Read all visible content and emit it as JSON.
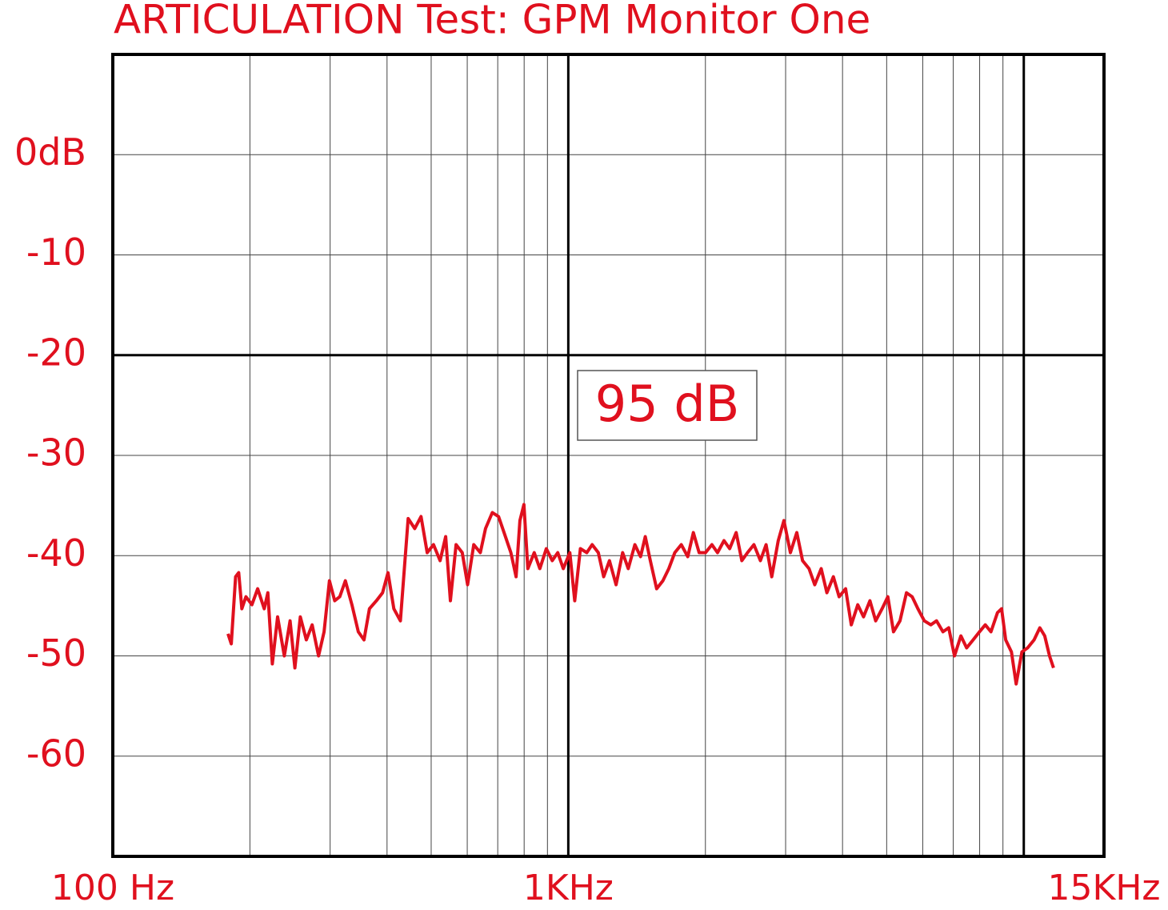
{
  "chart_data": {
    "type": "line",
    "title": "ARTICULATION Test: GPM Monitor One",
    "annotation": "95 dB",
    "color": "#e0101e",
    "xscale": "log",
    "xlim": [
      100,
      15000
    ],
    "xticks": [
      {
        "value": 100,
        "label": "100 Hz"
      },
      {
        "value": 1000,
        "label": "1KHz"
      },
      {
        "value": 15000,
        "label": "15KHz"
      }
    ],
    "xminor": [
      200,
      300,
      400,
      500,
      600,
      700,
      800,
      900,
      2000,
      3000,
      4000,
      5000,
      6000,
      7000,
      8000,
      9000
    ],
    "xmajor": [
      1000,
      10000
    ],
    "ylim": [
      -70,
      10
    ],
    "yticks": [
      {
        "value": 0,
        "label": "0dB"
      },
      -10,
      -20,
      -30,
      -40,
      -50,
      -60
    ],
    "ymajor": [
      -20
    ],
    "grid": true,
    "x": [
      179,
      182,
      186,
      189,
      192,
      196,
      202,
      208,
      215,
      219,
      224,
      230,
      238,
      245,
      251,
      258,
      266,
      274,
      283,
      291,
      299,
      307,
      315,
      324,
      335,
      346,
      356,
      366,
      379,
      391,
      402,
      414,
      428,
      438,
      445,
      460,
      475,
      490,
      506,
      523,
      538,
      551,
      567,
      585,
      601,
      620,
      641,
      658,
      681,
      703,
      724,
      748,
      768,
      783,
      799,
      815,
      842,
      866,
      895,
      922,
      948,
      975,
      1008,
      1033,
      1063,
      1098,
      1128,
      1164,
      1196,
      1231,
      1273,
      1316,
      1354,
      1400,
      1441,
      1476,
      1514,
      1563,
      1613,
      1662,
      1713,
      1770,
      1829,
      1882,
      1937,
      2001,
      2067,
      2126,
      2197,
      2261,
      2336,
      2404,
      2474,
      2556,
      2641,
      2718,
      2797,
      2890,
      2974,
      3073,
      3175,
      3268,
      3377,
      3476,
      3591,
      3696,
      3819,
      3931,
      4062,
      4181,
      4320,
      4447,
      4594,
      4729,
      4886,
      5029,
      5177,
      5348,
      5526,
      5688,
      5855,
      6049,
      6250,
      6433,
      6647,
      6842,
      7043,
      7277,
      7490,
      7739,
      7996,
      8231,
      8472,
      8753,
      8938,
      9126,
      9394,
      9623,
      9905,
      10196,
      10535,
      10844,
      11114,
      11391,
      11622
    ],
    "values": [
      -47.8,
      -48.8,
      -42.1,
      -41.7,
      -45.3,
      -44.1,
      -44.9,
      -43.3,
      -45.3,
      -43.7,
      -50.8,
      -46.1,
      -50,
      -46.5,
      -51.2,
      -46.1,
      -48.4,
      -46.9,
      -50,
      -47.6,
      -42.5,
      -44.5,
      -44.1,
      -42.5,
      -44.9,
      -47.6,
      -48.4,
      -45.3,
      -44.5,
      -43.7,
      -41.7,
      -45.3,
      -46.5,
      -40.5,
      -36.3,
      -37.3,
      -36.1,
      -39.7,
      -38.9,
      -40.5,
      -38.1,
      -44.5,
      -38.9,
      -39.7,
      -42.9,
      -38.9,
      -39.7,
      -37.3,
      -35.7,
      -36.1,
      -37.8,
      -39.7,
      -42.1,
      -36.5,
      -34.9,
      -41.3,
      -39.7,
      -41.3,
      -39.3,
      -40.5,
      -39.7,
      -41.3,
      -39.7,
      -44.5,
      -39.3,
      -39.7,
      -38.9,
      -39.7,
      -42.1,
      -40.5,
      -42.9,
      -39.7,
      -41.3,
      -38.9,
      -40.1,
      -38.1,
      -40.5,
      -43.3,
      -42.5,
      -41.3,
      -39.7,
      -38.9,
      -40.1,
      -37.7,
      -39.7,
      -39.7,
      -38.9,
      -39.7,
      -38.5,
      -39.3,
      -37.7,
      -40.5,
      -39.7,
      -38.9,
      -40.5,
      -38.9,
      -42.1,
      -38.5,
      -36.5,
      -39.7,
      -37.7,
      -40.5,
      -41.3,
      -42.9,
      -41.3,
      -43.7,
      -42.1,
      -44.1,
      -43.3,
      -46.9,
      -44.9,
      -46.1,
      -44.5,
      -46.5,
      -45.3,
      -44.1,
      -47.6,
      -46.5,
      -43.7,
      -44.1,
      -45.3,
      -46.5,
      -46.9,
      -46.5,
      -47.6,
      -47.2,
      -50,
      -48,
      -49.2,
      -48.4,
      -47.6,
      -46.9,
      -47.6,
      -45.7,
      -45.3,
      -48.4,
      -49.6,
      -52.8,
      -49.6,
      -49.2,
      -48.4,
      -47.2,
      -48,
      -50,
      -51.2
    ]
  }
}
